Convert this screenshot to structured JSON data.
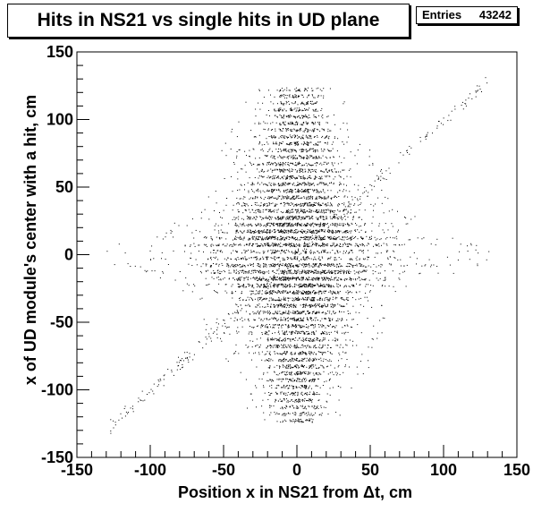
{
  "title": "Hits in NS21 vs single hits in UD plane",
  "stats": {
    "entries_label": "Entries",
    "entries_value": "43242"
  },
  "chart_data": {
    "type": "scatter",
    "title": "Hits in NS21 vs single hits in UD plane",
    "xlabel": "Position x in NS21 from Δt, cm",
    "ylabel": "x of UD module's center with a hit, cm",
    "xlim": [
      -150,
      150
    ],
    "ylim": [
      -150,
      150
    ],
    "xticks": [
      -150,
      -100,
      -50,
      0,
      50,
      100,
      150
    ],
    "yticks": [
      -150,
      -100,
      -50,
      0,
      50,
      100,
      150
    ],
    "grid": false,
    "legend": "none",
    "entries": 43242,
    "marker_color": "#000000",
    "y_module_centers": [
      -122.5,
      -117.5,
      -112.5,
      -107.5,
      -102.5,
      -97.5,
      -92.5,
      -87.5,
      -82.5,
      -77.5,
      -72.5,
      -67.5,
      -62.5,
      -57.5,
      -52.5,
      -47.5,
      -42.5,
      -37.5,
      -32.5,
      -27.5,
      -22.5,
      -17.5,
      -12.5,
      -7.5,
      -2.5,
      2.5,
      7.5,
      12.5,
      17.5,
      22.5,
      27.5,
      32.5,
      37.5,
      42.5,
      47.5,
      52.5,
      57.5,
      62.5,
      67.5,
      72.5,
      77.5,
      82.5,
      87.5,
      92.5,
      97.5,
      102.5,
      107.5,
      112.5,
      117.5,
      122.5
    ],
    "x_spread_by_module": [
      14,
      14,
      16,
      16,
      18,
      19,
      20,
      21,
      22,
      23,
      24,
      25,
      26,
      27,
      28,
      30,
      30,
      32,
      34,
      36,
      38,
      42,
      48,
      56,
      60,
      60,
      56,
      48,
      42,
      38,
      36,
      34,
      32,
      30,
      30,
      28,
      27,
      26,
      25,
      24,
      23,
      22,
      21,
      20,
      19,
      18,
      16,
      16,
      14,
      14
    ],
    "relative_density_by_module": [
      0.15,
      0.18,
      0.2,
      0.22,
      0.24,
      0.26,
      0.28,
      0.3,
      0.32,
      0.34,
      0.36,
      0.38,
      0.4,
      0.42,
      0.45,
      0.48,
      0.5,
      0.55,
      0.6,
      0.7,
      0.85,
      1.0,
      1.0,
      1.0,
      0.6,
      0.6,
      1.0,
      1.0,
      0.95,
      0.85,
      0.7,
      0.6,
      0.55,
      0.5,
      0.48,
      0.45,
      0.42,
      0.4,
      0.38,
      0.36,
      0.34,
      0.32,
      0.3,
      0.28,
      0.26,
      0.24,
      0.22,
      0.2,
      0.18,
      0.15
    ],
    "diagonal_band": {
      "slope": 1.0,
      "x_range": [
        -130,
        130
      ]
    }
  }
}
